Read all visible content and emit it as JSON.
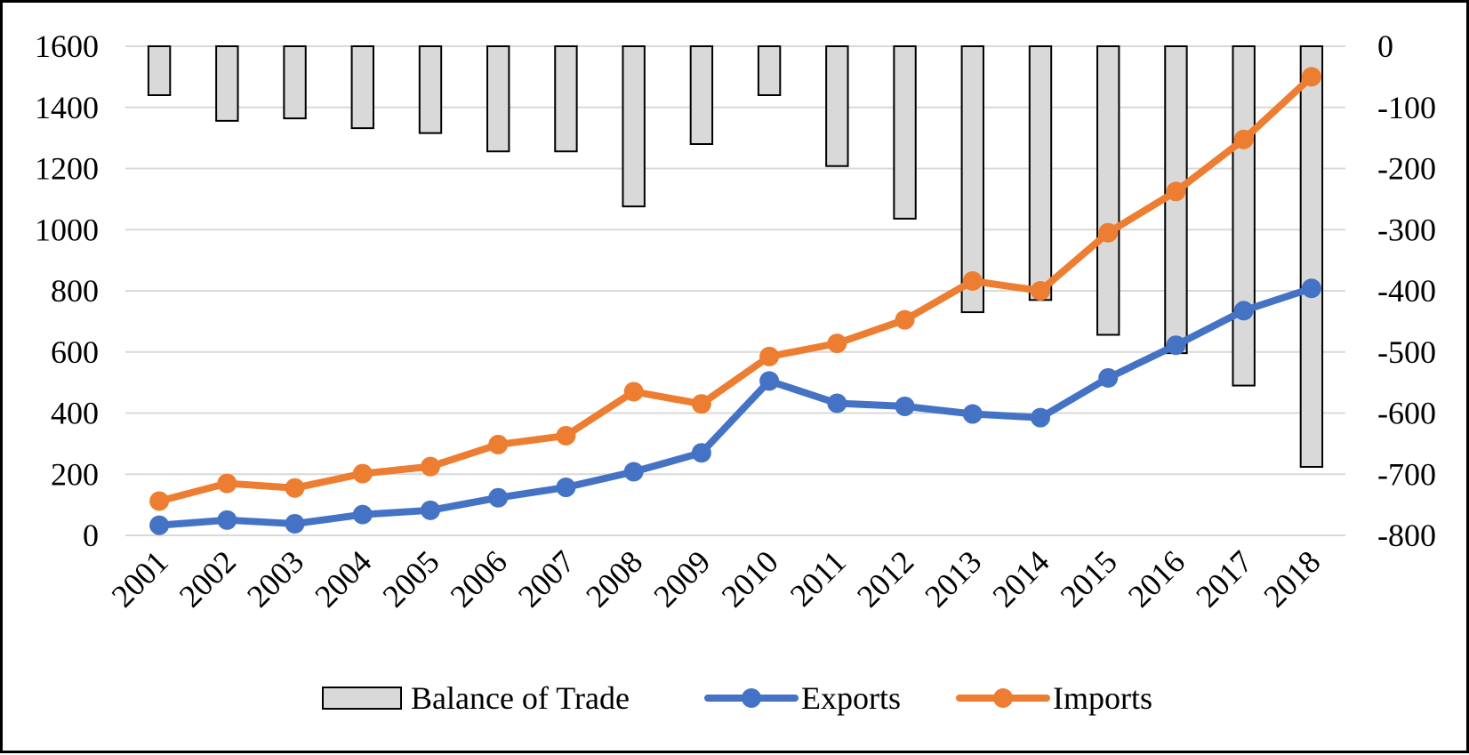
{
  "chart_data": {
    "type": "bar",
    "title": "",
    "xlabel": "",
    "ylabel": "",
    "y2label": "",
    "categories": [
      "2001",
      "2002",
      "2003",
      "2004",
      "2005",
      "2006",
      "2007",
      "2008",
      "2009",
      "2010",
      "2011",
      "2012",
      "2013",
      "2014",
      "2015",
      "2016",
      "2017",
      "2018"
    ],
    "ylim": [
      0,
      1600
    ],
    "y_ticks": [
      "0",
      "200",
      "400",
      "600",
      "800",
      "1000",
      "1200",
      "1400",
      "1600"
    ],
    "y2lim": [
      -800,
      0
    ],
    "y2_ticks": [
      "-800",
      "-700",
      "-600",
      "-500",
      "-400",
      "-300",
      "-200",
      "-100",
      "0"
    ],
    "grid": true,
    "legend_position": "bottom",
    "series": [
      {
        "name": "Balance of Trade",
        "type": "bar",
        "axis": "secondary",
        "color": "#d9d9d9",
        "values": [
          -80,
          -122,
          -118,
          -134,
          -142,
          -172,
          -172,
          -262,
          -160,
          -80,
          -196,
          -282,
          -435,
          -415,
          -472,
          -502,
          -555,
          -688
        ]
      },
      {
        "name": "Exports",
        "type": "line",
        "axis": "primary",
        "color": "#4472c4",
        "values": [
          33,
          50,
          38,
          68,
          82,
          123,
          157,
          208,
          270,
          505,
          432,
          422,
          397,
          385,
          515,
          622,
          735,
          808
        ]
      },
      {
        "name": "Imports",
        "type": "line",
        "axis": "primary",
        "color": "#ed7d31",
        "values": [
          112,
          170,
          155,
          202,
          225,
          297,
          326,
          470,
          430,
          585,
          628,
          705,
          832,
          800,
          990,
          1125,
          1295,
          1500
        ]
      }
    ]
  }
}
